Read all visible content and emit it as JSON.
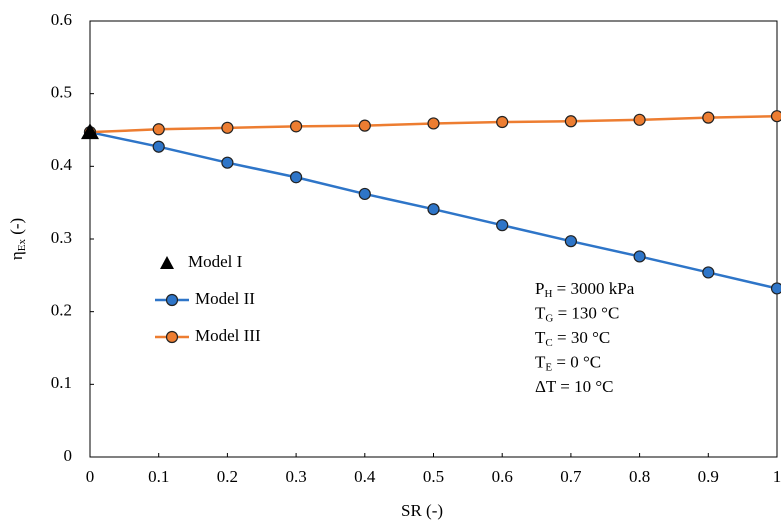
{
  "chart_data": {
    "type": "line",
    "x_label": "SR (-)",
    "y_label": {
      "main": "η",
      "sub": "Ex",
      "rest": " (-)"
    },
    "x": [
      0,
      0.1,
      0.2,
      0.3,
      0.4,
      0.5,
      0.6,
      0.7,
      0.8,
      0.9,
      1
    ],
    "series": [
      {
        "name": "Model I",
        "color": "#000000",
        "marker": "triangle",
        "line": false,
        "values": [
          0.447,
          null,
          null,
          null,
          null,
          null,
          null,
          null,
          null,
          null,
          null
        ]
      },
      {
        "name": "Model II",
        "color": "#2e75c8",
        "marker": "circle",
        "line": true,
        "values": [
          0.447,
          0.427,
          0.405,
          0.385,
          0.362,
          0.341,
          0.319,
          0.297,
          0.276,
          0.254,
          0.232
        ]
      },
      {
        "name": "Model III",
        "color": "#ed7d31",
        "marker": "circle",
        "line": true,
        "values": [
          0.447,
          0.451,
          0.453,
          0.455,
          0.456,
          0.459,
          0.461,
          0.462,
          0.464,
          0.467,
          0.469
        ]
      }
    ],
    "xlim": [
      0,
      1
    ],
    "xticks": [
      0,
      0.1,
      0.2,
      0.3,
      0.4,
      0.5,
      0.6,
      0.7,
      0.8,
      0.9,
      1
    ],
    "ylim": [
      0,
      0.6
    ],
    "yticks": [
      0,
      0.1,
      0.2,
      0.3,
      0.4,
      0.5,
      0.6
    ],
    "grid": false,
    "legend": "left",
    "annotations": [
      {
        "main": "P",
        "sub": "H",
        "rest": " = 3000 kPa"
      },
      {
        "main": "T",
        "sub": "G",
        "rest": " = 130 °C"
      },
      {
        "main": "T",
        "sub": "C",
        "rest": " = 30 °C"
      },
      {
        "main": "T",
        "sub": "E",
        "rest": " = 0 °C"
      },
      {
        "main": "ΔT = 10 °C"
      }
    ]
  }
}
